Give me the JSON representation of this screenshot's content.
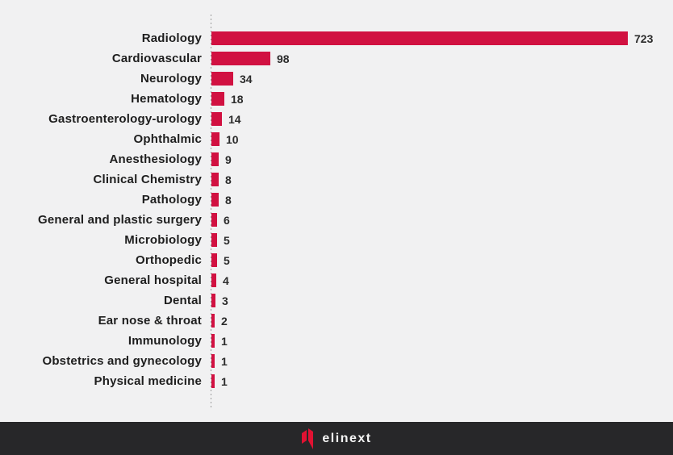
{
  "page": {
    "background": "#f1f1f2"
  },
  "chart_data": {
    "type": "bar",
    "orientation": "horizontal",
    "title": "",
    "xlabel": "",
    "ylabel": "",
    "categories": [
      "Radiology",
      "Cardiovascular",
      "Neurology",
      "Hematology",
      "Gastroenterology-urology",
      "Ophthalmic",
      "Anesthesiology",
      "Clinical Chemistry",
      "Pathology",
      "General and plastic surgery",
      "Microbiology",
      "Orthopedic",
      "General hospital",
      "Dental",
      "Ear nose & throat",
      "Immunology",
      "Obstetrics and gynecology",
      "Physical medicine"
    ],
    "values": [
      723,
      98,
      34,
      18,
      14,
      10,
      9,
      8,
      8,
      6,
      5,
      5,
      4,
      3,
      2,
      1,
      1,
      1
    ],
    "xlim": [
      0,
      723
    ],
    "bar_color": "#d11141",
    "value_labels_shown": true,
    "grid": false,
    "axis_line_style": "dotted",
    "legend": "none"
  },
  "footer": {
    "logo_text": "elinext",
    "background": "#272729",
    "logo_mark_color": "#e11232"
  }
}
